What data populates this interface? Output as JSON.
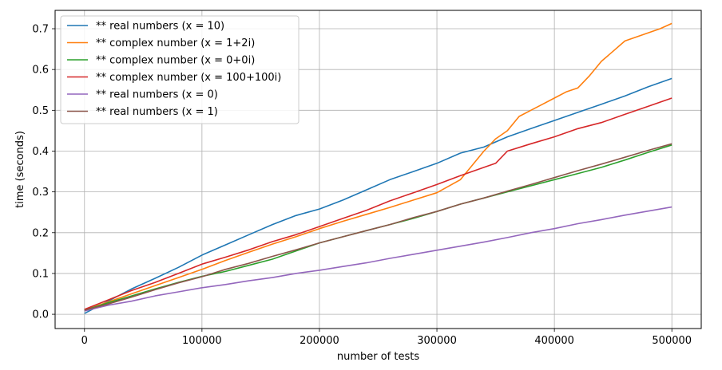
{
  "chart_data": {
    "type": "line",
    "title": "",
    "xlabel": "number of tests",
    "ylabel": "time (seconds)",
    "xlim": [
      -25000,
      525000
    ],
    "ylim": [
      -0.035,
      0.745
    ],
    "xticks": [
      0,
      100000,
      200000,
      300000,
      400000,
      500000
    ],
    "xtick_labels": [
      "0",
      "100000",
      "200000",
      "300000",
      "400000",
      "500000"
    ],
    "yticks": [
      0.0,
      0.1,
      0.2,
      0.3,
      0.4,
      0.5,
      0.6,
      0.7
    ],
    "ytick_labels": [
      "0.0",
      "0.1",
      "0.2",
      "0.3",
      "0.4",
      "0.5",
      "0.6",
      "0.7"
    ],
    "grid": true,
    "legend_position": "top-left",
    "series": [
      {
        "name": "** real numbers (x = 10)",
        "color": "#1f77b4",
        "x": [
          0,
          20000,
          40000,
          60000,
          80000,
          100000,
          120000,
          140000,
          160000,
          180000,
          200000,
          220000,
          240000,
          260000,
          280000,
          300000,
          320000,
          340000,
          360000,
          380000,
          400000,
          420000,
          440000,
          460000,
          480000,
          500000
        ],
        "y": [
          0.002,
          0.032,
          0.062,
          0.088,
          0.115,
          0.145,
          0.17,
          0.195,
          0.22,
          0.242,
          0.258,
          0.28,
          0.305,
          0.33,
          0.35,
          0.37,
          0.395,
          0.41,
          0.435,
          0.455,
          0.475,
          0.495,
          0.515,
          0.535,
          0.558,
          0.578
        ]
      },
      {
        "name": "** complex number (x = 1+2i)",
        "color": "#ff7f0e",
        "x": [
          0,
          20000,
          40000,
          60000,
          80000,
          100000,
          120000,
          140000,
          160000,
          180000,
          200000,
          220000,
          240000,
          260000,
          280000,
          300000,
          320000,
          330000,
          340000,
          350000,
          360000,
          370000,
          380000,
          390000,
          400000,
          410000,
          420000,
          430000,
          440000,
          450000,
          460000,
          470000,
          480000,
          490000,
          500000
        ],
        "y": [
          0.01,
          0.03,
          0.05,
          0.07,
          0.09,
          0.11,
          0.132,
          0.152,
          0.172,
          0.19,
          0.21,
          0.228,
          0.245,
          0.262,
          0.28,
          0.298,
          0.33,
          0.365,
          0.4,
          0.43,
          0.45,
          0.485,
          0.5,
          0.515,
          0.53,
          0.545,
          0.555,
          0.585,
          0.62,
          0.645,
          0.67,
          0.68,
          0.69,
          0.7,
          0.713
        ]
      },
      {
        "name": "** complex number (x = 0+0i)",
        "color": "#2ca02c",
        "x": [
          0,
          20000,
          40000,
          60000,
          80000,
          100000,
          120000,
          140000,
          160000,
          180000,
          200000,
          220000,
          240000,
          260000,
          280000,
          300000,
          320000,
          340000,
          360000,
          380000,
          400000,
          420000,
          440000,
          460000,
          480000,
          500000
        ],
        "y": [
          0.01,
          0.028,
          0.045,
          0.062,
          0.078,
          0.093,
          0.105,
          0.12,
          0.135,
          0.155,
          0.175,
          0.19,
          0.205,
          0.22,
          0.235,
          0.252,
          0.27,
          0.285,
          0.3,
          0.315,
          0.33,
          0.345,
          0.36,
          0.378,
          0.397,
          0.415
        ]
      },
      {
        "name": "** complex number (x = 100+100i)",
        "color": "#d62728",
        "x": [
          0,
          20000,
          40000,
          60000,
          80000,
          100000,
          120000,
          140000,
          160000,
          180000,
          200000,
          220000,
          240000,
          260000,
          280000,
          300000,
          320000,
          340000,
          350000,
          360000,
          380000,
          400000,
          420000,
          440000,
          460000,
          480000,
          500000
        ],
        "y": [
          0.012,
          0.035,
          0.058,
          0.078,
          0.1,
          0.123,
          0.14,
          0.158,
          0.178,
          0.195,
          0.215,
          0.235,
          0.255,
          0.278,
          0.298,
          0.318,
          0.34,
          0.36,
          0.37,
          0.4,
          0.418,
          0.435,
          0.455,
          0.47,
          0.49,
          0.51,
          0.53
        ]
      },
      {
        "name": "** real numbers (x = 0)",
        "color": "#9467bd",
        "x": [
          0,
          20000,
          40000,
          60000,
          80000,
          100000,
          120000,
          140000,
          160000,
          180000,
          200000,
          220000,
          240000,
          260000,
          280000,
          300000,
          320000,
          340000,
          360000,
          380000,
          400000,
          420000,
          440000,
          460000,
          480000,
          500000
        ],
        "y": [
          0.008,
          0.022,
          0.032,
          0.045,
          0.055,
          0.065,
          0.073,
          0.082,
          0.09,
          0.1,
          0.108,
          0.117,
          0.126,
          0.137,
          0.147,
          0.157,
          0.167,
          0.177,
          0.188,
          0.2,
          0.21,
          0.222,
          0.232,
          0.243,
          0.253,
          0.263
        ]
      },
      {
        "name": "** real numbers (x = 1)",
        "color": "#8c564b",
        "x": [
          0,
          20000,
          40000,
          60000,
          80000,
          100000,
          120000,
          140000,
          160000,
          180000,
          200000,
          220000,
          240000,
          260000,
          280000,
          300000,
          320000,
          340000,
          360000,
          380000,
          400000,
          420000,
          440000,
          460000,
          480000,
          500000
        ],
        "y": [
          0.01,
          0.025,
          0.042,
          0.06,
          0.077,
          0.092,
          0.11,
          0.125,
          0.142,
          0.158,
          0.175,
          0.19,
          0.205,
          0.22,
          0.237,
          0.252,
          0.27,
          0.285,
          0.302,
          0.318,
          0.335,
          0.352,
          0.368,
          0.385,
          0.402,
          0.418
        ]
      }
    ]
  }
}
